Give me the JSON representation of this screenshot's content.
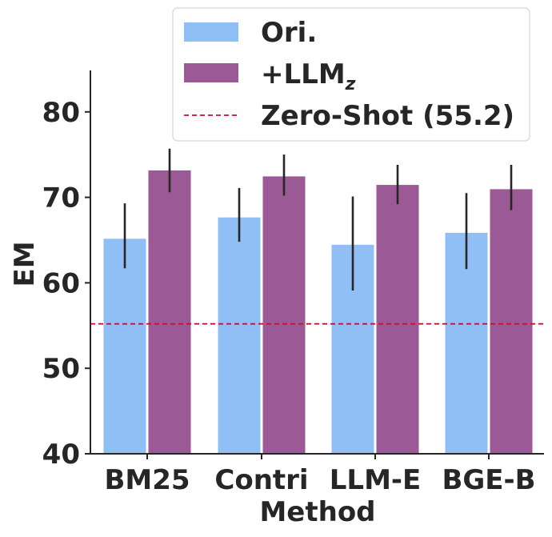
{
  "colors": {
    "ori": "#90bff5",
    "llm": "#9b5a96",
    "zero_shot_line": "#c8102e",
    "error_bar": "#262626",
    "axis": "#262626"
  },
  "chart_data": {
    "type": "bar",
    "title": "",
    "xlabel": "Method",
    "ylabel": "EM",
    "categories": [
      "BM25",
      "Contri",
      "LLM-E",
      "BGE-B"
    ],
    "ylim": [
      40,
      85
    ],
    "yticks": [
      "40",
      "50",
      "60",
      "70",
      "80"
    ],
    "legend_position": "top-right",
    "series": [
      {
        "name": "Ori.",
        "color_key": "ori",
        "values": [
          65.2,
          67.7,
          64.5,
          65.9
        ],
        "err_low": [
          61.7,
          64.8,
          59.1,
          61.6
        ],
        "err_high": [
          69.3,
          71.1,
          70.1,
          70.5
        ]
      },
      {
        "name": "+LLM",
        "subscript": "z",
        "color_key": "llm",
        "values": [
          73.2,
          72.5,
          71.5,
          71.0
        ],
        "err_low": [
          70.6,
          70.2,
          69.2,
          68.5
        ],
        "err_high": [
          75.7,
          75.0,
          73.8,
          73.8
        ]
      }
    ],
    "reference_line": {
      "label": "Zero-Shot (55.2)",
      "value": 55.2,
      "style": "dashed"
    }
  }
}
